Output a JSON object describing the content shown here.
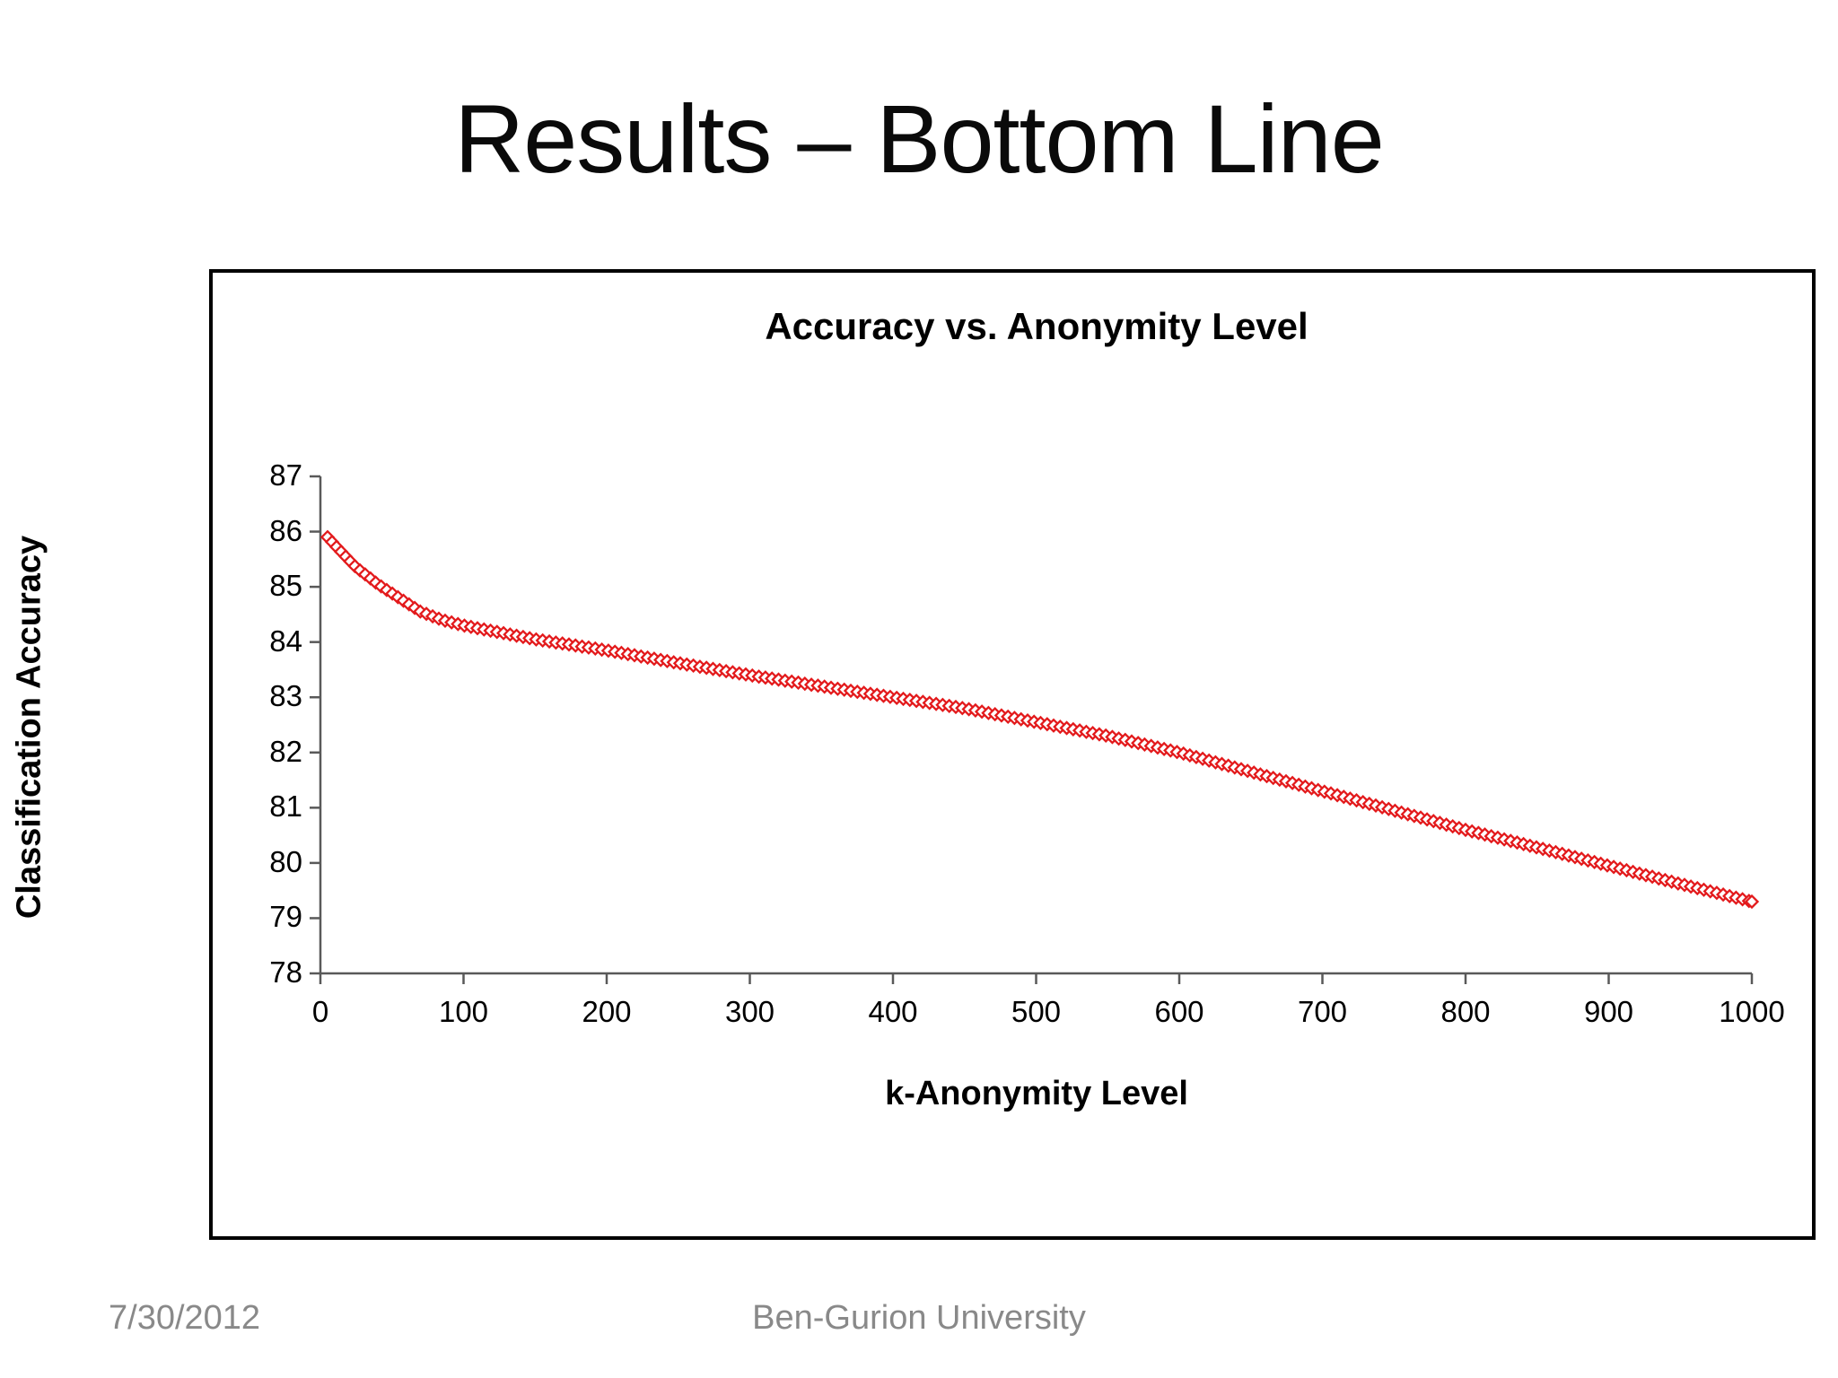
{
  "slide": {
    "title": "Results – Bottom Line",
    "footer": {
      "date": "7/30/2012",
      "institution": "Ben-Gurion University"
    }
  },
  "chart_data": {
    "type": "line",
    "title": "Accuracy vs. Anonymity Level",
    "xlabel": "k-Anonymity Level",
    "ylabel": "Classification Accuracy",
    "xlim": [
      0,
      1000
    ],
    "ylim": [
      78,
      87
    ],
    "x_ticks": [
      0,
      100,
      200,
      300,
      400,
      500,
      600,
      700,
      800,
      900,
      1000
    ],
    "y_ticks": [
      78,
      79,
      80,
      81,
      82,
      83,
      84,
      85,
      86,
      87
    ],
    "grid": false,
    "legend": "none",
    "line_color": "#e31a1c",
    "marker": "diamond-chain",
    "axis_color": "#595959",
    "series": [
      {
        "name": "Classification Accuracy",
        "points": [
          [
            5,
            85.9
          ],
          [
            15,
            85.62
          ],
          [
            25,
            85.35
          ],
          [
            40,
            85.05
          ],
          [
            55,
            84.8
          ],
          [
            70,
            84.55
          ],
          [
            85,
            84.4
          ],
          [
            100,
            84.3
          ],
          [
            150,
            84.05
          ],
          [
            200,
            83.85
          ],
          [
            250,
            83.62
          ],
          [
            300,
            83.4
          ],
          [
            350,
            83.2
          ],
          [
            400,
            83.0
          ],
          [
            450,
            82.8
          ],
          [
            500,
            82.55
          ],
          [
            550,
            82.3
          ],
          [
            600,
            82.0
          ],
          [
            650,
            81.65
          ],
          [
            700,
            81.3
          ],
          [
            750,
            80.95
          ],
          [
            800,
            80.6
          ],
          [
            850,
            80.28
          ],
          [
            900,
            79.95
          ],
          [
            950,
            79.62
          ],
          [
            1000,
            79.3
          ]
        ]
      }
    ]
  }
}
